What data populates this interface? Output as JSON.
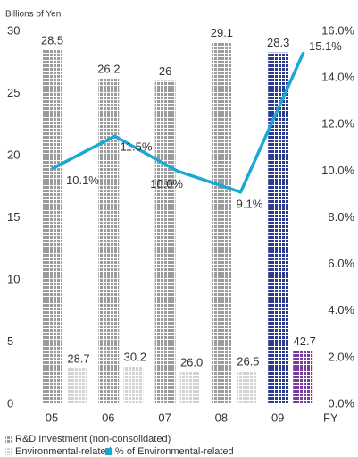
{
  "chart_data": {
    "type": "bar-line",
    "y_axis_label": "Billions of Yen",
    "x_axis_label": "FY",
    "categories": [
      "05",
      "06",
      "07",
      "08",
      "09"
    ],
    "ylim": [
      0,
      30
    ],
    "yticks": [
      0,
      5,
      10,
      15,
      20,
      25,
      30
    ],
    "y2lim": [
      0,
      16
    ],
    "y2ticks": [
      {
        "value": 0,
        "label": "0.0%"
      },
      {
        "value": 2,
        "label": "2.0%"
      },
      {
        "value": 4,
        "label": "4.0%"
      },
      {
        "value": 6,
        "label": "6.0%"
      },
      {
        "value": 8,
        "label": "8.0%"
      },
      {
        "value": 10,
        "label": "10.0%"
      },
      {
        "value": 12,
        "label": "12.0%"
      },
      {
        "value": 14,
        "label": "14.0%"
      },
      {
        "value": 16,
        "label": "16.0%"
      }
    ],
    "series": [
      {
        "name": "R&D Investment (non-consolidated)",
        "kind": "bar",
        "color": "#9b9b9b",
        "colors": [
          "#9b9b9b",
          "#9b9b9b",
          "#9b9b9b",
          "#9b9b9b",
          "#2a3a8e"
        ],
        "values": [
          28.5,
          26.2,
          26.0,
          29.1,
          28.3
        ]
      },
      {
        "name": "Environmental-related",
        "kind": "bar",
        "color": "#d2d2d2",
        "colors": [
          "#d2d2d2",
          "#d2d2d2",
          "#d2d2d2",
          "#d2d2d2",
          "#7a3a9c"
        ],
        "values": [
          2.87,
          3.02,
          2.6,
          2.65,
          4.27
        ],
        "value_labels": [
          "28.7",
          "30.2",
          "26.0",
          "26.5",
          "42.7"
        ]
      },
      {
        "name": "% of Environmental-related",
        "kind": "line",
        "axis": "y2",
        "color": "#1ba8d5",
        "values": [
          10.1,
          11.5,
          10.0,
          9.1,
          15.1
        ],
        "value_labels": [
          "10.1%",
          "11.5%",
          "10.0%",
          "9.1%",
          "15.1%"
        ]
      }
    ]
  }
}
